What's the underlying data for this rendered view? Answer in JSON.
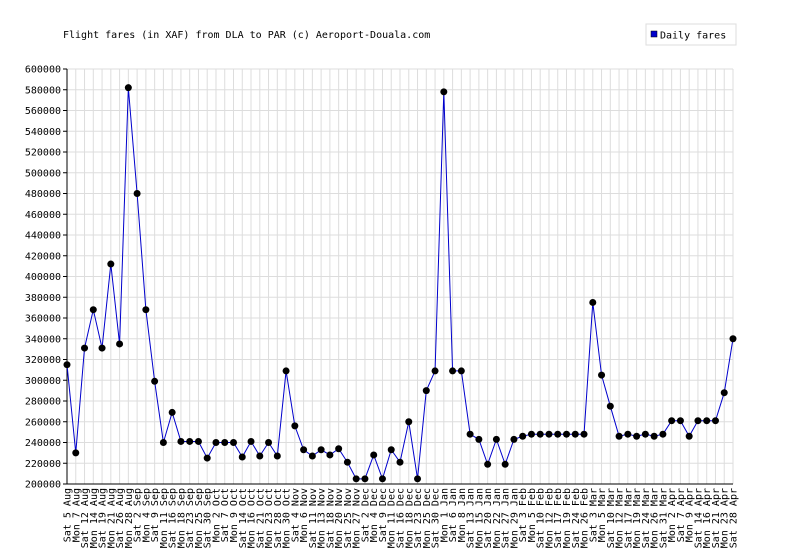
{
  "chart_data": {
    "type": "line",
    "title": "Flight fares (in XAF) from DLA to PAR (c) Aeroport-Douala.com",
    "categories": [
      "Sat 5 Aug",
      "Mon 7 Aug",
      "Sat 12 Aug",
      "Mon 14 Aug",
      "Sat 19 Aug",
      "Mon 21 Aug",
      "Sat 26 Aug",
      "Mon 28 Aug",
      "Sat 2 Sep",
      "Mon 4 Sep",
      "Sat 9 Sep",
      "Mon 11 Sep",
      "Sat 16 Sep",
      "Mon 18 Sep",
      "Sat 23 Sep",
      "Mon 25 Sep",
      "Sat 30 Sep",
      "Mon 2 Oct",
      "Sat 7 Oct",
      "Mon 9 Oct",
      "Sat 14 Oct",
      "Mon 16 Oct",
      "Sat 21 Oct",
      "Mon 23 Oct",
      "Sat 28 Oct",
      "Mon 30 Oct",
      "Sat 4 Nov",
      "Mon 6 Nov",
      "Sat 11 Nov",
      "Mon 13 Nov",
      "Sat 18 Nov",
      "Mon 20 Nov",
      "Sat 25 Nov",
      "Mon 27 Nov",
      "Sat 2 Dec",
      "Mon 4 Dec",
      "Sat 9 Dec",
      "Mon 11 Dec",
      "Sat 16 Dec",
      "Mon 18 Dec",
      "Sat 23 Dec",
      "Mon 25 Dec",
      "Sat 30 Dec",
      "Mon 1 Jan",
      "Sat 6 Jan",
      "Mon 8 Jan",
      "Sat 13 Jan",
      "Mon 15 Jan",
      "Sat 20 Jan",
      "Mon 22 Jan",
      "Sat 27 Jan",
      "Mon 29 Jan",
      "Sat 3 Feb",
      "Mon 5 Feb",
      "Sat 10 Feb",
      "Mon 12 Feb",
      "Sat 17 Feb",
      "Mon 19 Feb",
      "Sat 24 Feb",
      "Mon 26 Feb",
      "Sat 3 Mar",
      "Mon 5 Mar",
      "Sat 10 Mar",
      "Mon 12 Mar",
      "Sat 17 Mar",
      "Mon 19 Mar",
      "Sat 24 Mar",
      "Mon 26 Mar",
      "Sat 31 Mar",
      "Mon 2 Apr",
      "Sat 7 Apr",
      "Mon 9 Apr",
      "Sat 14 Apr",
      "Mon 16 Apr",
      "Sat 21 Apr",
      "Mon 23 Apr",
      "Sat 28 Apr"
    ],
    "series": [
      {
        "name": "Daily fares",
        "color": "#0000cc",
        "marker_color": "#000000",
        "values": [
          315000,
          230000,
          331000,
          368000,
          331000,
          412000,
          335000,
          582000,
          480000,
          368000,
          299000,
          240000,
          269000,
          241000,
          241000,
          241000,
          225000,
          240000,
          240000,
          240000,
          226000,
          241000,
          227000,
          240000,
          227000,
          309000,
          256000,
          233000,
          227000,
          233000,
          228000,
          234000,
          221000,
          205000,
          205000,
          228000,
          205000,
          233000,
          221000,
          260000,
          205000,
          290000,
          309000,
          578000,
          309000,
          309000,
          248000,
          243000,
          219000,
          243000,
          219000,
          243000,
          246000,
          248000,
          248000,
          248000,
          248000,
          248000,
          248000,
          248000,
          375000,
          305000,
          275000,
          246000,
          248000,
          246000,
          248000,
          246000,
          248000,
          261000,
          261000,
          246000,
          261000,
          261000,
          261000,
          288000,
          340000
        ]
      }
    ],
    "ylim": [
      200000,
      600000
    ],
    "yticks": [
      200000,
      220000,
      240000,
      260000,
      280000,
      300000,
      320000,
      340000,
      360000,
      380000,
      400000,
      420000,
      440000,
      460000,
      480000,
      500000,
      520000,
      540000,
      560000,
      580000,
      600000
    ],
    "grid": true,
    "legend": "top-right"
  }
}
